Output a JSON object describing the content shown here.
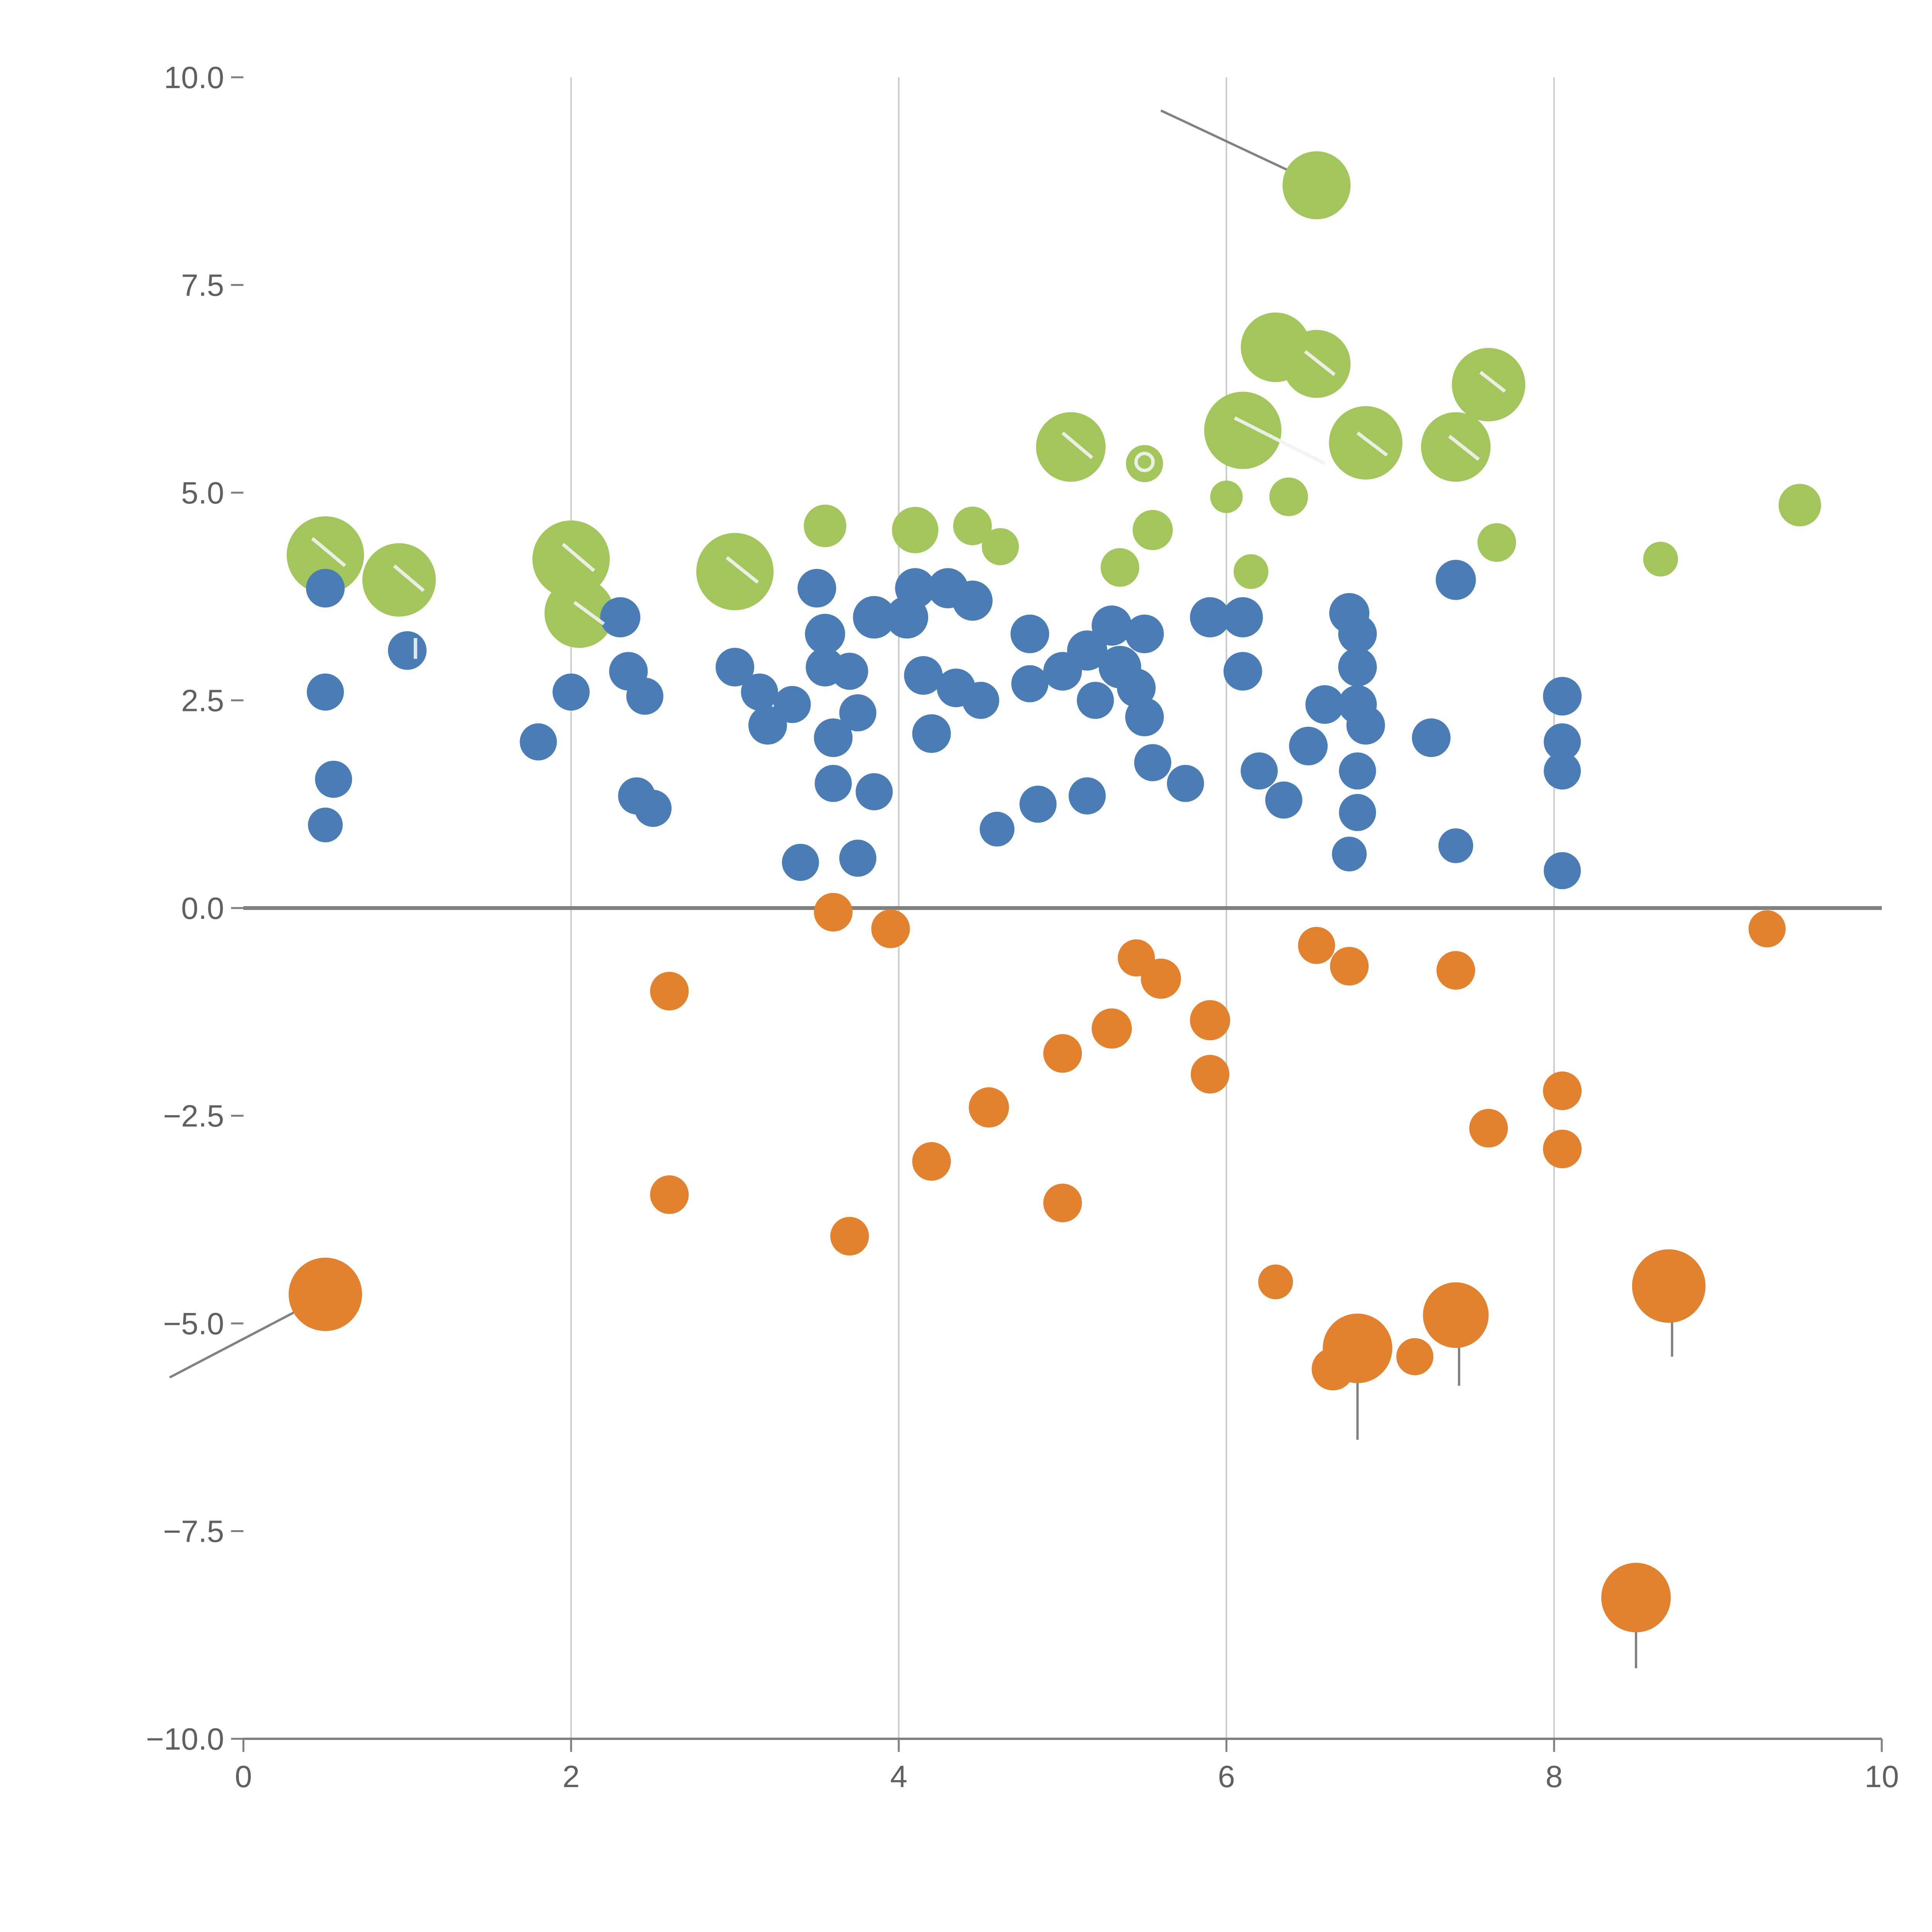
{
  "figure": {
    "background": "#ffffff",
    "tick_label_color": "#606060",
    "axis_line_color": "#808080",
    "grid_color": "#cccccc",
    "annotation_line_color": "#808080",
    "highlight_mark_color": "#f2f2f2"
  },
  "chart_data": {
    "type": "scatter",
    "title": "",
    "xlabel": "",
    "ylabel": "",
    "xlim": [
      0,
      10
    ],
    "ylim": [
      -10,
      10
    ],
    "grid": {
      "vertical_at": [
        2,
        4,
        6,
        8
      ],
      "horizontal": false
    },
    "zero_line": {
      "y": 0
    },
    "legend": "none",
    "x_ticks": [
      0,
      2,
      4,
      6,
      8,
      10
    ],
    "x_tick_labels": [
      "0",
      "2",
      "4",
      "6",
      "8",
      "10"
    ],
    "y_ticks": [
      -10,
      -7.5,
      -5,
      -2.5,
      0,
      2.5,
      5,
      7.5,
      10
    ],
    "y_tick_labels": [
      "−10.0",
      "−7.5",
      "−5.0",
      "−2.5",
      "0.0",
      "2.5",
      "5.0",
      "7.5",
      "10.0"
    ],
    "series": [
      {
        "name": "green",
        "color": "#a2c65b",
        "points": [
          [
            0.5,
            4.25,
            100
          ],
          [
            0.95,
            3.95,
            95
          ],
          [
            2.0,
            4.2,
            100
          ],
          [
            2.05,
            3.55,
            90
          ],
          [
            3.0,
            4.05,
            100
          ],
          [
            3.55,
            4.6,
            55
          ],
          [
            4.1,
            4.55,
            60
          ],
          [
            4.45,
            4.6,
            50
          ],
          [
            4.62,
            4.35,
            48
          ],
          [
            5.05,
            5.55,
            90
          ],
          [
            5.35,
            4.1,
            50
          ],
          [
            5.5,
            5.35,
            48
          ],
          [
            5.55,
            4.55,
            52
          ],
          [
            6.0,
            4.95,
            42
          ],
          [
            6.1,
            5.75,
            100
          ],
          [
            6.15,
            4.05,
            45
          ],
          [
            6.3,
            6.75,
            90
          ],
          [
            6.38,
            4.95,
            50
          ],
          [
            6.55,
            6.55,
            88
          ],
          [
            6.55,
            8.7,
            88
          ],
          [
            6.85,
            5.6,
            95
          ],
          [
            7.4,
            5.55,
            90
          ],
          [
            7.6,
            6.3,
            95
          ],
          [
            7.65,
            4.4,
            50
          ],
          [
            8.65,
            4.2,
            45
          ],
          [
            9.5,
            4.85,
            55
          ]
        ]
      },
      {
        "name": "blue",
        "color": "#4a7cb5",
        "points": [
          [
            0.5,
            3.85,
            50
          ],
          [
            0.5,
            2.6,
            48
          ],
          [
            0.55,
            1.55,
            48
          ],
          [
            0.5,
            1.0,
            45
          ],
          [
            1.0,
            3.1,
            50
          ],
          [
            1.8,
            2.0,
            48
          ],
          [
            2.0,
            2.6,
            48
          ],
          [
            2.3,
            3.5,
            52
          ],
          [
            2.35,
            2.85,
            50
          ],
          [
            2.45,
            2.55,
            48
          ],
          [
            2.4,
            1.35,
            48
          ],
          [
            2.5,
            1.2,
            48
          ],
          [
            3.0,
            2.9,
            50
          ],
          [
            3.15,
            2.6,
            48
          ],
          [
            3.2,
            2.2,
            50
          ],
          [
            3.35,
            2.45,
            48
          ],
          [
            3.4,
            0.55,
            48
          ],
          [
            3.5,
            3.85,
            50
          ],
          [
            3.55,
            3.3,
            52
          ],
          [
            3.55,
            2.9,
            50
          ],
          [
            3.6,
            2.05,
            50
          ],
          [
            3.6,
            1.5,
            48
          ],
          [
            3.7,
            2.85,
            48
          ],
          [
            3.75,
            2.35,
            48
          ],
          [
            3.75,
            0.6,
            48
          ],
          [
            3.85,
            3.5,
            55
          ],
          [
            3.85,
            1.4,
            48
          ],
          [
            4.05,
            3.5,
            55
          ],
          [
            4.1,
            3.85,
            52
          ],
          [
            4.15,
            2.8,
            50
          ],
          [
            4.2,
            2.1,
            50
          ],
          [
            4.3,
            3.85,
            52
          ],
          [
            4.35,
            2.65,
            50
          ],
          [
            4.45,
            3.7,
            52
          ],
          [
            4.5,
            2.5,
            48
          ],
          [
            4.6,
            0.95,
            45
          ],
          [
            4.8,
            3.3,
            50
          ],
          [
            4.8,
            2.7,
            48
          ],
          [
            4.85,
            1.25,
            48
          ],
          [
            5.0,
            2.85,
            50
          ],
          [
            5.15,
            3.1,
            52
          ],
          [
            5.2,
            2.5,
            48
          ],
          [
            5.15,
            1.35,
            48
          ],
          [
            5.3,
            3.4,
            52
          ],
          [
            5.35,
            2.9,
            55
          ],
          [
            5.45,
            2.65,
            50
          ],
          [
            5.5,
            3.3,
            50
          ],
          [
            5.5,
            2.3,
            50
          ],
          [
            5.55,
            1.75,
            48
          ],
          [
            5.75,
            1.5,
            48
          ],
          [
            5.9,
            3.5,
            52
          ],
          [
            6.1,
            3.5,
            52
          ],
          [
            6.1,
            2.85,
            50
          ],
          [
            6.2,
            1.65,
            48
          ],
          [
            6.35,
            1.3,
            48
          ],
          [
            6.5,
            1.95,
            50
          ],
          [
            6.6,
            2.45,
            50
          ],
          [
            6.75,
            3.55,
            52
          ],
          [
            6.8,
            3.3,
            50
          ],
          [
            6.8,
            2.9,
            50
          ],
          [
            6.8,
            2.45,
            50
          ],
          [
            6.85,
            2.2,
            50
          ],
          [
            6.8,
            1.65,
            48
          ],
          [
            6.8,
            1.15,
            48
          ],
          [
            6.75,
            0.65,
            45
          ],
          [
            7.25,
            2.05,
            50
          ],
          [
            7.4,
            3.95,
            52
          ],
          [
            7.4,
            0.75,
            45
          ],
          [
            8.05,
            2.55,
            50
          ],
          [
            8.05,
            2.0,
            48
          ],
          [
            8.05,
            1.65,
            48
          ],
          [
            8.05,
            0.45,
            48
          ]
        ]
      },
      {
        "name": "orange",
        "color": "#e2822e",
        "points": [
          [
            0.5,
            -4.65,
            95
          ],
          [
            2.6,
            -1.0,
            50
          ],
          [
            2.6,
            -3.45,
            50
          ],
          [
            3.6,
            -0.05,
            50
          ],
          [
            3.7,
            -3.95,
            50
          ],
          [
            3.95,
            -0.25,
            50
          ],
          [
            4.2,
            -3.05,
            50
          ],
          [
            4.55,
            -2.4,
            52
          ],
          [
            5.0,
            -1.75,
            50
          ],
          [
            5.0,
            -3.55,
            50
          ],
          [
            5.3,
            -1.45,
            52
          ],
          [
            5.45,
            -0.6,
            48
          ],
          [
            5.6,
            -0.85,
            52
          ],
          [
            5.9,
            -1.35,
            52
          ],
          [
            5.9,
            -2.0,
            50
          ],
          [
            6.3,
            -4.5,
            45
          ],
          [
            6.55,
            -0.45,
            48
          ],
          [
            6.75,
            -0.7,
            50
          ],
          [
            6.65,
            -5.55,
            55
          ],
          [
            6.8,
            -5.3,
            90
          ],
          [
            7.15,
            -5.4,
            48
          ],
          [
            7.4,
            -4.9,
            85
          ],
          [
            7.4,
            -0.75,
            50
          ],
          [
            7.6,
            -2.65,
            50
          ],
          [
            8.05,
            -2.2,
            50
          ],
          [
            8.05,
            -2.9,
            50
          ],
          [
            8.5,
            -8.3,
            90
          ],
          [
            8.7,
            -4.55,
            95
          ],
          [
            9.3,
            -0.25,
            48
          ]
        ]
      }
    ],
    "annotations": {
      "gray_lines": [
        [
          [
            5.6,
            9.6
          ],
          [
            6.55,
            8.72
          ]
        ],
        [
          [
            -0.45,
            -5.65
          ],
          [
            0.5,
            -4.67
          ]
        ],
        [
          [
            6.8,
            -5.35
          ],
          [
            6.8,
            -6.4
          ]
        ],
        [
          [
            7.42,
            -4.95
          ],
          [
            7.42,
            -5.75
          ]
        ],
        [
          [
            8.5,
            -8.35
          ],
          [
            8.5,
            -9.15
          ]
        ],
        [
          [
            8.72,
            -4.6
          ],
          [
            8.72,
            -5.4
          ]
        ]
      ],
      "white_lines": [
        [
          [
            0.42,
            4.45
          ],
          [
            0.62,
            4.12
          ]
        ],
        [
          [
            0.92,
            4.12
          ],
          [
            1.1,
            3.82
          ]
        ],
        [
          [
            1.05,
            3.25
          ],
          [
            1.05,
            3.0
          ]
        ],
        [
          [
            1.95,
            4.38
          ],
          [
            2.14,
            4.06
          ]
        ],
        [
          [
            2.02,
            3.68
          ],
          [
            2.2,
            3.42
          ]
        ],
        [
          [
            2.95,
            4.22
          ],
          [
            3.14,
            3.92
          ]
        ],
        [
          [
            5.0,
            5.72
          ],
          [
            5.18,
            5.42
          ]
        ],
        [
          [
            6.05,
            5.9
          ],
          [
            6.6,
            5.35
          ]
        ],
        [
          [
            6.48,
            6.7
          ],
          [
            6.66,
            6.42
          ]
        ],
        [
          [
            6.8,
            5.72
          ],
          [
            6.98,
            5.45
          ]
        ],
        [
          [
            7.36,
            5.68
          ],
          [
            7.54,
            5.4
          ]
        ],
        [
          [
            7.55,
            6.45
          ],
          [
            7.7,
            6.22
          ]
        ]
      ],
      "white_rings": [
        {
          "x": 5.5,
          "y": 5.37,
          "r": 22
        }
      ]
    }
  }
}
